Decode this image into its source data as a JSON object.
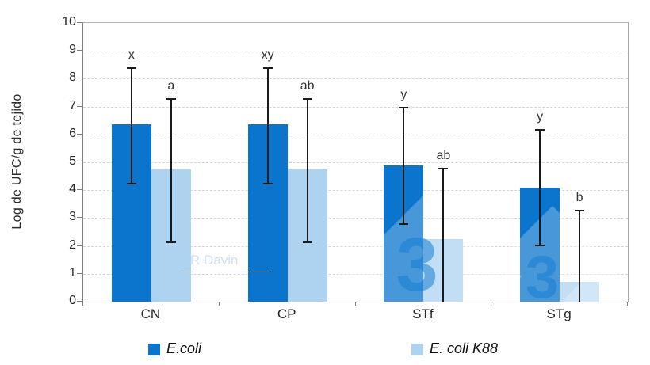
{
  "watermarks": {
    "author": "R Davin",
    "logo_digit": "3"
  },
  "chart_data": {
    "type": "bar",
    "title": "",
    "xlabel": "",
    "ylabel": "Log de UFC/g de tejido",
    "ylim": [
      0,
      10
    ],
    "yticks": [
      0,
      1,
      2,
      3,
      4,
      5,
      6,
      7,
      8,
      9,
      10
    ],
    "grid": true,
    "legend_position": "bottom",
    "categories": [
      "CN",
      "CP",
      "STf",
      "STg"
    ],
    "series": [
      {
        "name": "E.coli",
        "color": "#0b74cd",
        "values": [
          6.35,
          6.35,
          4.9,
          4.1
        ],
        "err_low": [
          4.2,
          4.2,
          2.75,
          2.0
        ],
        "err_high": [
          8.4,
          8.4,
          7.0,
          6.2
        ],
        "sig_letters": [
          "x",
          "xy",
          "y",
          "y"
        ]
      },
      {
        "name": "E. coli K88",
        "color": "#aed3f0",
        "values": [
          4.75,
          4.75,
          2.25,
          0.7
        ],
        "err_low": [
          2.1,
          2.1,
          0,
          0
        ],
        "err_high": [
          7.3,
          7.3,
          4.8,
          3.3
        ],
        "sig_letters": [
          "a",
          "ab",
          "ab",
          "b"
        ]
      }
    ]
  }
}
